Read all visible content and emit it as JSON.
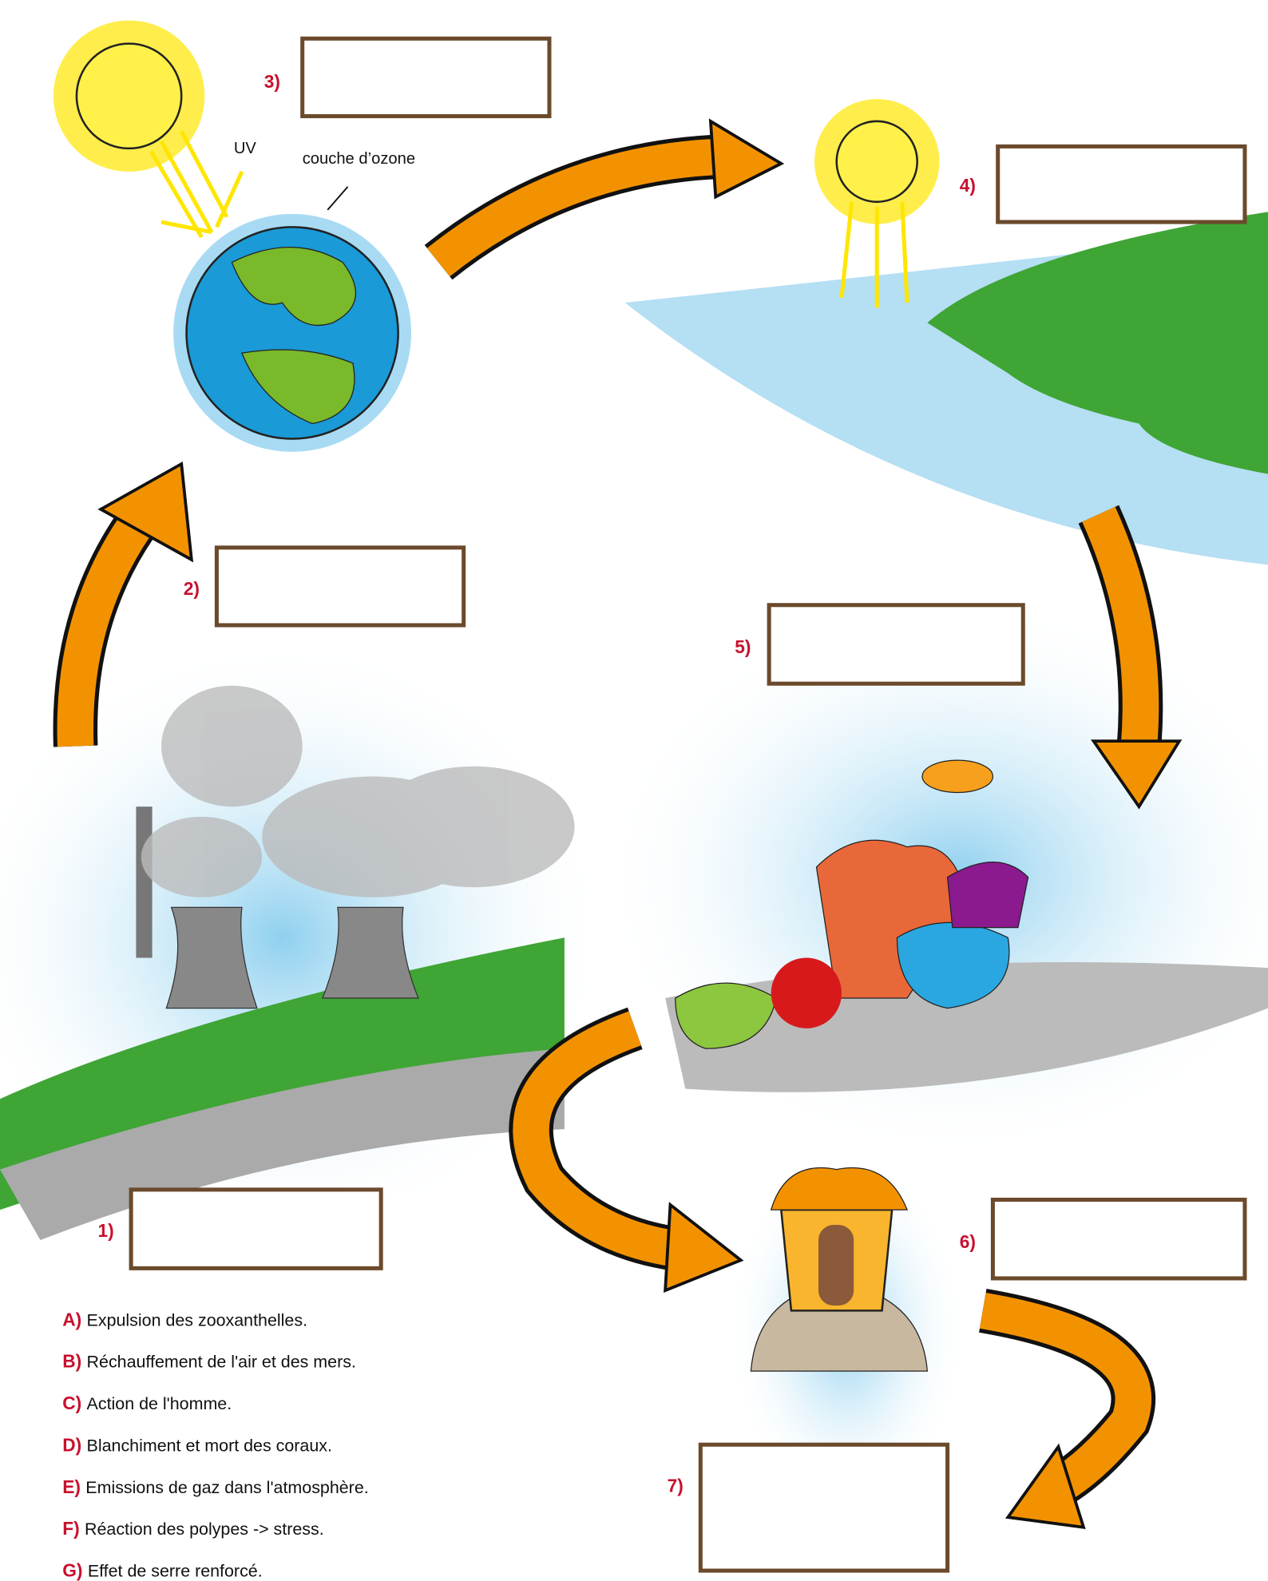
{
  "steps": [
    {
      "label": "1)"
    },
    {
      "label": "2)"
    },
    {
      "label": "3)"
    },
    {
      "label": "4)"
    },
    {
      "label": "5)"
    },
    {
      "label": "6)"
    },
    {
      "label": "7)"
    }
  ],
  "annotations": {
    "uv": "UV",
    "ozone": "couche d’ozone"
  },
  "legend": [
    {
      "letter": "A)",
      "text": "Expulsion des zooxanthelles."
    },
    {
      "letter": "B)",
      "text": "Réchauffement de l'air et des mers."
    },
    {
      "letter": "C)",
      "text": "Action de l'homme."
    },
    {
      "letter": "D)",
      "text": "Blanchiment et mort des coraux."
    },
    {
      "letter": "E)",
      "text": "Emissions de gaz dans l'atmosphère."
    },
    {
      "letter": "F)",
      "text": "Réaction des polypes -> stress."
    },
    {
      "letter": "G)",
      "text": "Effet de serre renforcé."
    }
  ]
}
